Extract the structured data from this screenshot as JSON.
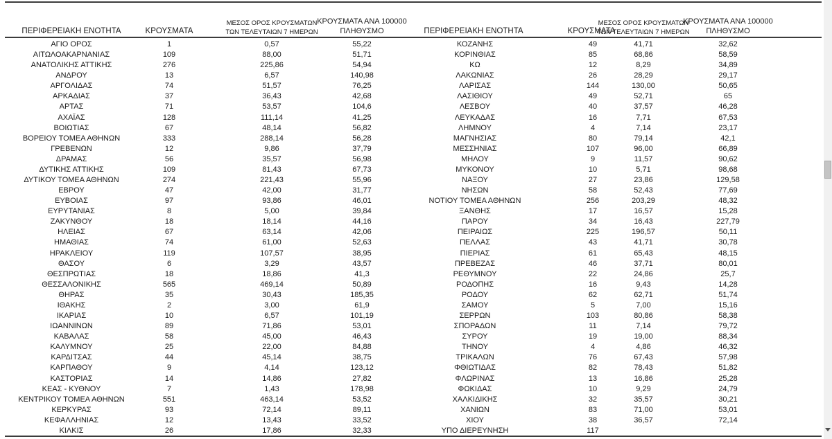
{
  "colors": {
    "background": "#ffffff",
    "text": "#1a1a1a",
    "rule_line": "#3b3b3b",
    "scrollbar_track": "#f1f1f1",
    "scrollbar_thumb": "#c4c4c4",
    "scrollbar_arrow": "#4d4d4d"
  },
  "table": {
    "headers": {
      "region": "ΠΕΡΙΦΕΡΕΙΑΚΗ ΕΝΟΤΗΤΑ",
      "cases": "ΚΡΟΥΣΜΑΤΑ",
      "avg7_line1": "ΜΕΣΟΣ ΟΡΟΣ ΚΡΟΥΣΜΑΤΩΝ",
      "avg7_line2": "ΤΩΝ ΤΕΛΕΥΤΑΙΩΝ 7 ΗΜΕΡΩΝ",
      "per100k_line1": "ΚΡΟΥΣΜΑΤΑ ΑΝΑ 100000",
      "per100k_line2": "ΠΛΗΘΥΣΜΟ"
    },
    "left_rows": [
      [
        "ΑΓΙΟ ΟΡΟΣ",
        "1",
        "0,57",
        "55,22"
      ],
      [
        "ΑΙΤΩΛΟΑΚΑΡΝΑΝΙΑΣ",
        "109",
        "88,00",
        "51,71"
      ],
      [
        "ΑΝΑΤΟΛΙΚΗΣ ΑΤΤΙΚΗΣ",
        "276",
        "225,86",
        "54,94"
      ],
      [
        "ΑΝΔΡΟΥ",
        "13",
        "6,57",
        "140,98"
      ],
      [
        "ΑΡΓΟΛΙΔΑΣ",
        "74",
        "51,57",
        "76,25"
      ],
      [
        "ΑΡΚΑΔΙΑΣ",
        "37",
        "36,43",
        "42,68"
      ],
      [
        "ΑΡΤΑΣ",
        "71",
        "53,57",
        "104,6"
      ],
      [
        "ΑΧΑΪΑΣ",
        "128",
        "111,14",
        "41,25"
      ],
      [
        "ΒΟΙΩΤΙΑΣ",
        "67",
        "48,14",
        "56,82"
      ],
      [
        "ΒΟΡΕΙΟΥ ΤΟΜΕΑ ΑΘΗΝΩΝ",
        "333",
        "288,14",
        "56,28"
      ],
      [
        "ΓΡΕΒΕΝΩΝ",
        "12",
        "9,86",
        "37,79"
      ],
      [
        "ΔΡΑΜΑΣ",
        "56",
        "35,57",
        "56,98"
      ],
      [
        "ΔΥΤΙΚΗΣ ΑΤΤΙΚΗΣ",
        "109",
        "81,43",
        "67,73"
      ],
      [
        "ΔΥΤΙΚΟΥ ΤΟΜΕΑ ΑΘΗΝΩΝ",
        "274",
        "221,43",
        "55,96"
      ],
      [
        "ΕΒΡΟΥ",
        "47",
        "42,00",
        "31,77"
      ],
      [
        "ΕΥΒΟΙΑΣ",
        "97",
        "93,86",
        "46,01"
      ],
      [
        "ΕΥΡΥΤΑΝΙΑΣ",
        "8",
        "5,00",
        "39,84"
      ],
      [
        "ΖΑΚΥΝΘΟΥ",
        "18",
        "18,14",
        "44,16"
      ],
      [
        "ΗΛΕΙΑΣ",
        "67",
        "63,14",
        "42,06"
      ],
      [
        "ΗΜΑΘΙΑΣ",
        "74",
        "61,00",
        "52,63"
      ],
      [
        "ΗΡΑΚΛΕΙΟΥ",
        "119",
        "107,57",
        "38,95"
      ],
      [
        "ΘΑΣΟΥ",
        "6",
        "3,29",
        "43,57"
      ],
      [
        "ΘΕΣΠΡΩΤΙΑΣ",
        "18",
        "18,86",
        "41,3"
      ],
      [
        "ΘΕΣΣΑΛΟΝΙΚΗΣ",
        "565",
        "469,14",
        "50,89"
      ],
      [
        "ΘΗΡΑΣ",
        "35",
        "30,43",
        "185,35"
      ],
      [
        "ΙΘΑΚΗΣ",
        "2",
        "3,00",
        "61,9"
      ],
      [
        "ΙΚΑΡΙΑΣ",
        "10",
        "6,57",
        "101,19"
      ],
      [
        "ΙΩΑΝΝΙΝΩΝ",
        "89",
        "71,86",
        "53,01"
      ],
      [
        "ΚΑΒΑΛΑΣ",
        "58",
        "45,00",
        "46,43"
      ],
      [
        "ΚΑΛΥΜΝΟΥ",
        "25",
        "22,00",
        "84,88"
      ],
      [
        "ΚΑΡΔΙΤΣΑΣ",
        "44",
        "45,14",
        "38,75"
      ],
      [
        "ΚΑΡΠΑΘΟΥ",
        "9",
        "4,14",
        "123,12"
      ],
      [
        "ΚΑΣΤΟΡΙΑΣ",
        "14",
        "14,86",
        "27,82"
      ],
      [
        "ΚΕΑΣ - ΚΥΘΝΟΥ",
        "7",
        "1,43",
        "178,98"
      ],
      [
        "ΚΕΝΤΡΙΚΟΥ ΤΟΜΕΑ ΑΘΗΝΩΝ",
        "551",
        "463,14",
        "53,52"
      ],
      [
        "ΚΕΡΚΥΡΑΣ",
        "93",
        "72,14",
        "89,11"
      ],
      [
        "ΚΕΦΑΛΛΗΝΙΑΣ",
        "12",
        "13,43",
        "33,52"
      ],
      [
        "ΚΙΛΚΙΣ",
        "26",
        "17,86",
        "32,33"
      ]
    ],
    "right_rows": [
      [
        "ΚΟΖΑΝΗΣ",
        "49",
        "41,71",
        "32,62"
      ],
      [
        "ΚΟΡΙΝΘΙΑΣ",
        "85",
        "68,86",
        "58,59"
      ],
      [
        "ΚΩ",
        "12",
        "8,29",
        "34,89"
      ],
      [
        "ΛΑΚΩΝΙΑΣ",
        "26",
        "28,29",
        "29,17"
      ],
      [
        "ΛΑΡΙΣΑΣ",
        "144",
        "130,00",
        "50,65"
      ],
      [
        "ΛΑΣΙΘΙΟΥ",
        "49",
        "52,71",
        "65"
      ],
      [
        "ΛΕΣΒΟΥ",
        "40",
        "37,57",
        "46,28"
      ],
      [
        "ΛΕΥΚΑΔΑΣ",
        "16",
        "7,71",
        "67,53"
      ],
      [
        "ΛΗΜΝΟΥ",
        "4",
        "7,14",
        "23,17"
      ],
      [
        "ΜΑΓΝΗΣΙΑΣ",
        "80",
        "79,14",
        "42,1"
      ],
      [
        "ΜΕΣΣΗΝΙΑΣ",
        "107",
        "96,00",
        "66,89"
      ],
      [
        "ΜΗΛΟΥ",
        "9",
        "11,57",
        "90,62"
      ],
      [
        "ΜΥΚΟΝΟΥ",
        "10",
        "5,71",
        "98,68"
      ],
      [
        "ΝΑΞΟΥ",
        "27",
        "23,86",
        "129,58"
      ],
      [
        "ΝΗΣΩΝ",
        "58",
        "52,43",
        "77,69"
      ],
      [
        "ΝΟΤΙΟΥ ΤΟΜΕΑ ΑΘΗΝΩΝ",
        "256",
        "203,29",
        "48,32"
      ],
      [
        "ΞΑΝΘΗΣ",
        "17",
        "16,57",
        "15,28"
      ],
      [
        "ΠΑΡΟΥ",
        "34",
        "16,43",
        "227,79"
      ],
      [
        "ΠΕΙΡΑΙΩΣ",
        "225",
        "196,57",
        "50,11"
      ],
      [
        "ΠΕΛΛΑΣ",
        "43",
        "41,71",
        "30,78"
      ],
      [
        "ΠΙΕΡΙΑΣ",
        "61",
        "65,43",
        "48,15"
      ],
      [
        "ΠΡΕΒΕΖΑΣ",
        "46",
        "37,71",
        "80,01"
      ],
      [
        "ΡΕΘΥΜΝΟΥ",
        "22",
        "24,86",
        "25,7"
      ],
      [
        "ΡΟΔΟΠΗΣ",
        "16",
        "9,43",
        "14,28"
      ],
      [
        "ΡΟΔΟΥ",
        "62",
        "62,71",
        "51,74"
      ],
      [
        "ΣΑΜΟΥ",
        "5",
        "7,00",
        "15,16"
      ],
      [
        "ΣΕΡΡΩΝ",
        "103",
        "80,86",
        "58,38"
      ],
      [
        "ΣΠΟΡΑΔΩΝ",
        "11",
        "7,14",
        "79,72"
      ],
      [
        "ΣΥΡΟΥ",
        "19",
        "19,00",
        "88,34"
      ],
      [
        "ΤΗΝΟΥ",
        "4",
        "4,86",
        "46,32"
      ],
      [
        "ΤΡΙΚΑΛΩΝ",
        "76",
        "67,43",
        "57,98"
      ],
      [
        "ΦΘΙΩΤΙΔΑΣ",
        "82",
        "78,43",
        "51,82"
      ],
      [
        "ΦΛΩΡΙΝΑΣ",
        "13",
        "16,86",
        "25,28"
      ],
      [
        "ΦΩΚΙΔΑΣ",
        "10",
        "9,29",
        "24,79"
      ],
      [
        "ΧΑΛΚΙΔΙΚΗΣ",
        "32",
        "35,57",
        "30,21"
      ],
      [
        "ΧΑΝΙΩΝ",
        "83",
        "71,00",
        "53,01"
      ],
      [
        "ΧΙΟΥ",
        "38",
        "36,57",
        "72,14"
      ],
      [
        "ΥΠΟ ΔΙΕΡΕΥΝΗΣΗ",
        "117",
        "",
        ""
      ]
    ]
  }
}
